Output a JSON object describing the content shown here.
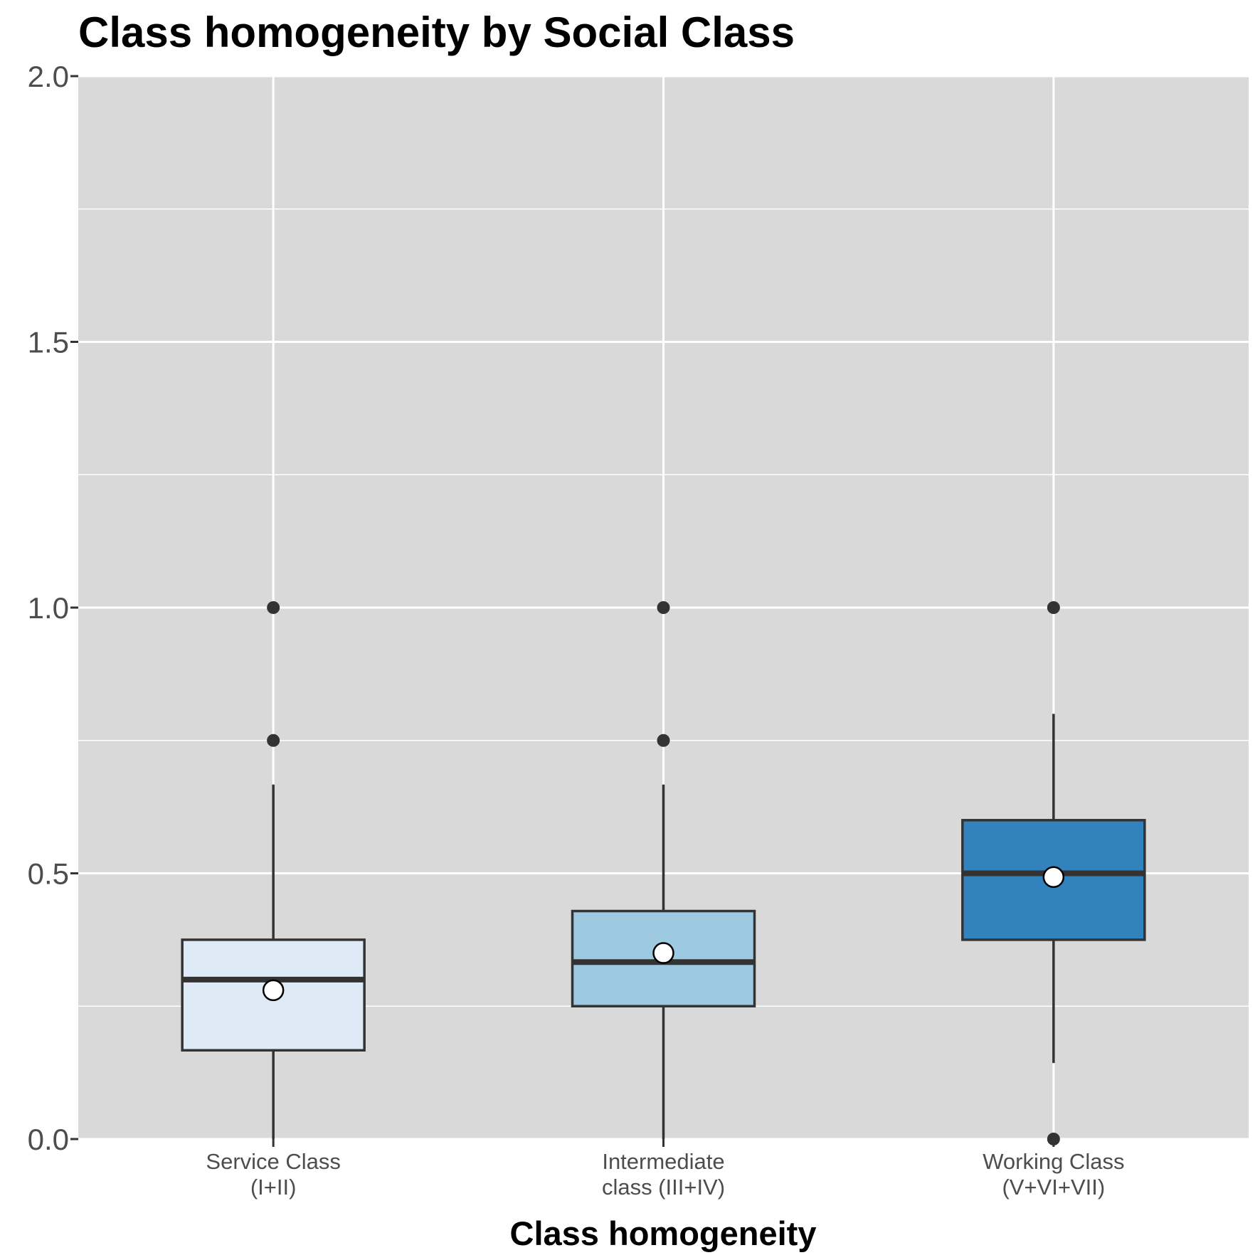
{
  "chart_data": {
    "type": "boxplot",
    "title": "Class homogeneity by Social Class",
    "xlabel": "Class homogeneity",
    "ylabel": "",
    "ylim": [
      0,
      2
    ],
    "yticks": [
      "0.0",
      "0.5",
      "1.0",
      "1.5",
      "2.0"
    ],
    "yticks_values": [
      0,
      0.5,
      1.0,
      1.5,
      2.0
    ],
    "grid": true,
    "background_color": "#d9d9d9",
    "legend": "none",
    "categories": [
      {
        "lines": [
          "Service Class",
          "(I+II)"
        ]
      },
      {
        "lines": [
          "Intermediate",
          "class (III+IV)"
        ]
      },
      {
        "lines": [
          "Working Class",
          "(V+VI+VII)"
        ]
      }
    ],
    "boxes": [
      {
        "whisker_low": 0.0,
        "q1": 0.167,
        "median": 0.3,
        "q3": 0.375,
        "whisker_high": 0.667,
        "mean": 0.28,
        "outliers": [
          0.75,
          1.0
        ],
        "fill": "#deebf7"
      },
      {
        "whisker_low": 0.0,
        "q1": 0.25,
        "median": 0.333,
        "q3": 0.429,
        "whisker_high": 0.667,
        "mean": 0.35,
        "outliers": [
          0.75,
          1.0
        ],
        "fill": "#9ecae1"
      },
      {
        "whisker_low": 0.143,
        "q1": 0.375,
        "median": 0.5,
        "q3": 0.6,
        "whisker_high": 0.8,
        "mean": 0.493,
        "outliers": [
          0.0,
          1.0
        ],
        "fill": "#3182bd"
      }
    ]
  }
}
